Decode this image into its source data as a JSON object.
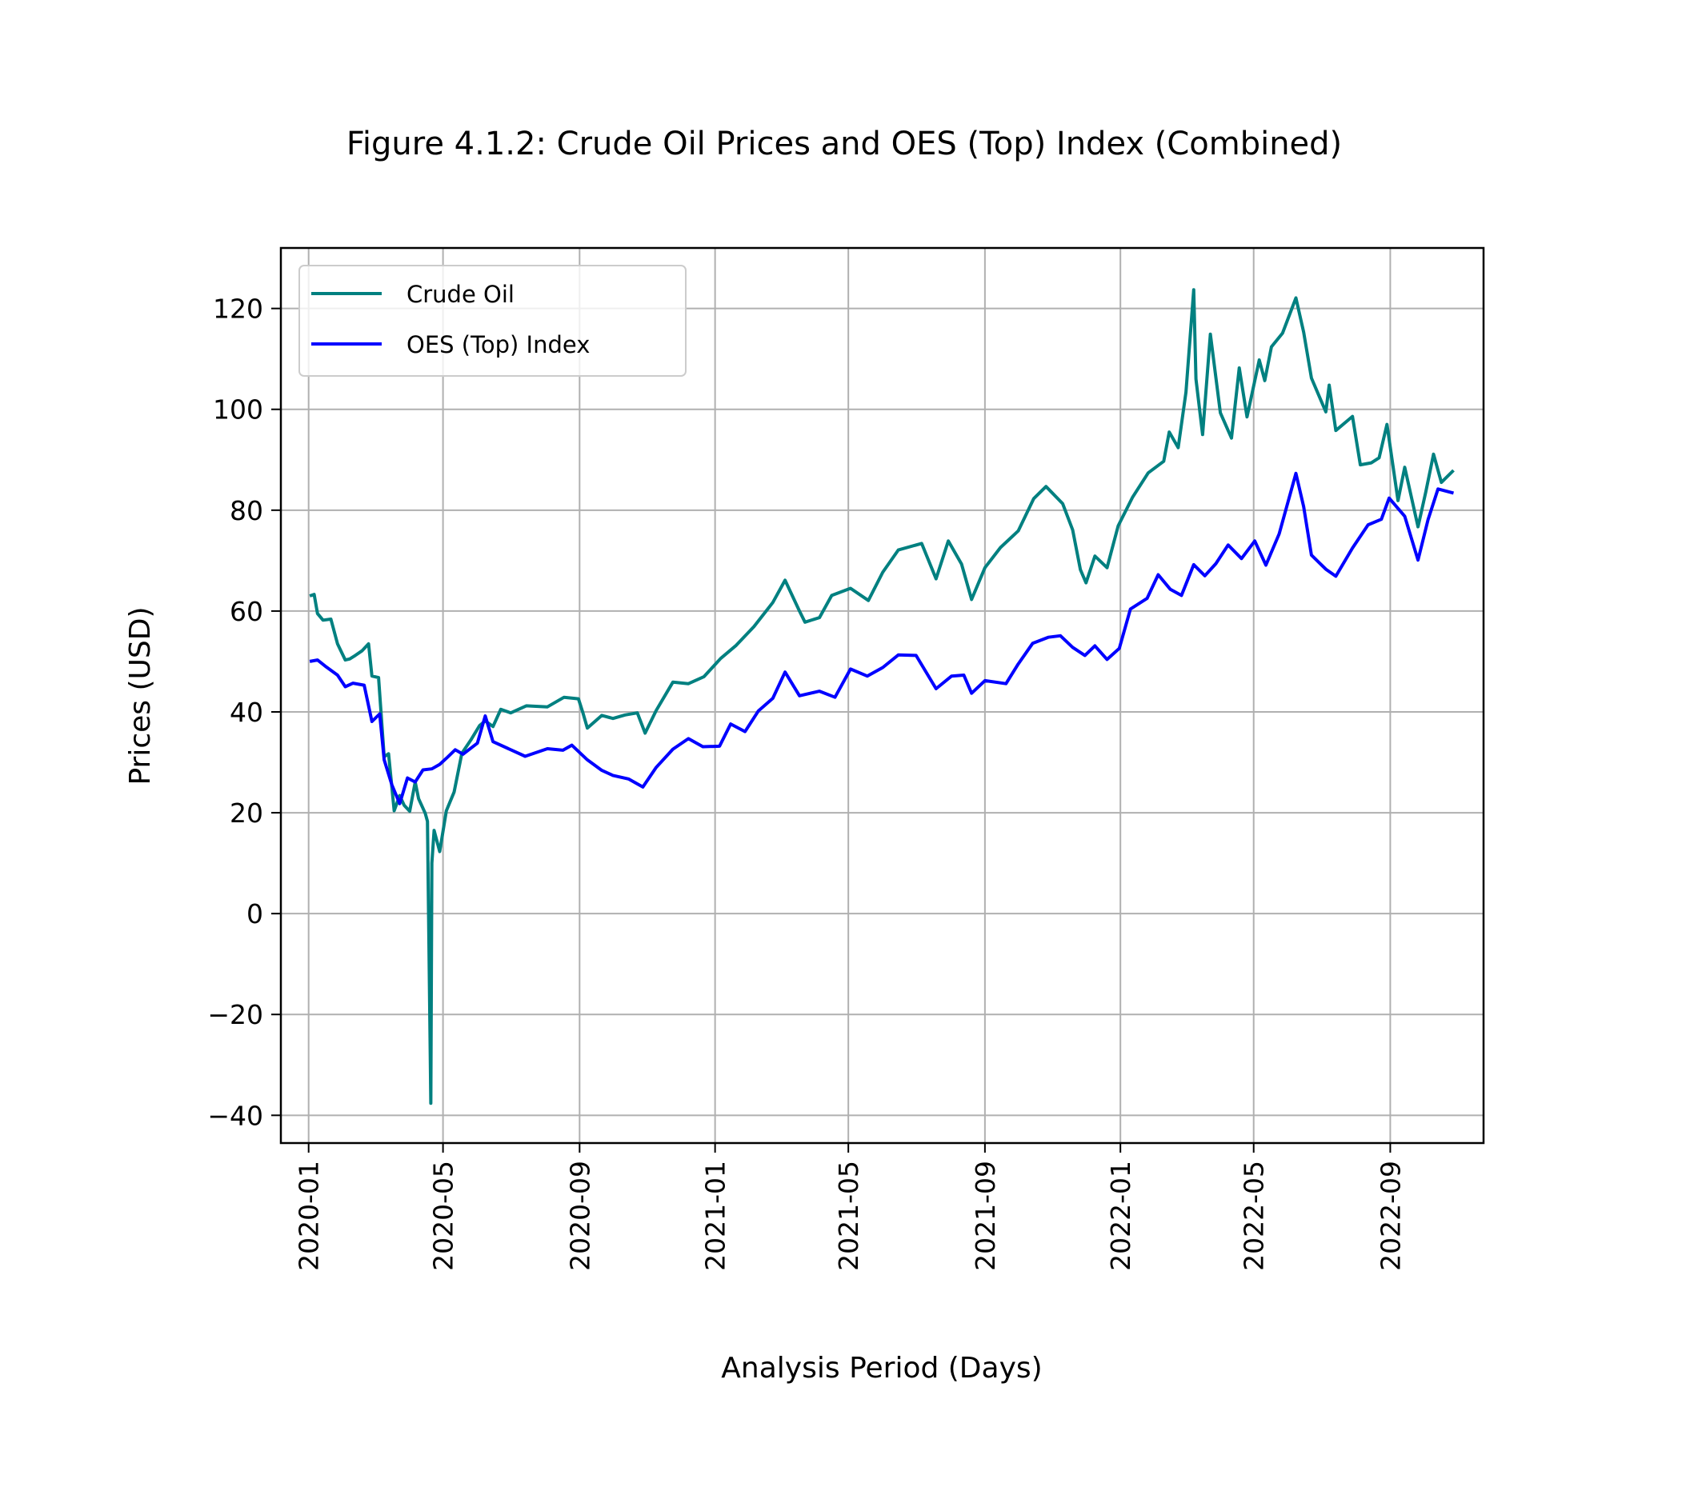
{
  "chart_data": {
    "type": "line",
    "title": "Figure 4.1.2: Crude Oil Prices and OES (Top) Index (Combined)",
    "xlabel": "Analysis Period (Days)",
    "ylabel": "Prices (USD)",
    "x_ticks": [
      "2020-01",
      "2020-05",
      "2020-09",
      "2021-01",
      "2021-05",
      "2021-09",
      "2022-01",
      "2022-05",
      "2022-09"
    ],
    "y_ticks": [
      "−40",
      "−20",
      "0",
      "20",
      "40",
      "60",
      "80",
      "100",
      "120"
    ],
    "xlim": [
      "2019-12-07",
      "2022-11-24"
    ],
    "ylim": [
      -45.5,
      132
    ],
    "grid": true,
    "legend_position": "top-left",
    "series": [
      {
        "name": "Crude Oil",
        "color": "#008080",
        "points": [
          [
            "2020-01-02",
            63
          ],
          [
            "2020-01-06",
            63.3
          ],
          [
            "2020-01-09",
            59.5
          ],
          [
            "2020-01-14",
            58.2
          ],
          [
            "2020-01-21",
            58.4
          ],
          [
            "2020-01-27",
            53.5
          ],
          [
            "2020-02-03",
            50.3
          ],
          [
            "2020-02-07",
            50.5
          ],
          [
            "2020-02-12",
            51.2
          ],
          [
            "2020-02-18",
            52.1
          ],
          [
            "2020-02-24",
            53.5
          ],
          [
            "2020-02-27",
            47.1
          ],
          [
            "2020-03-04",
            46.8
          ],
          [
            "2020-03-09",
            31.1
          ],
          [
            "2020-03-13",
            31.7
          ],
          [
            "2020-03-18",
            20.4
          ],
          [
            "2020-03-23",
            23.4
          ],
          [
            "2020-03-27",
            21.5
          ],
          [
            "2020-04-01",
            20.3
          ],
          [
            "2020-04-06",
            26.1
          ],
          [
            "2020-04-09",
            22.8
          ],
          [
            "2020-04-15",
            19.9
          ],
          [
            "2020-04-17",
            18.3
          ],
          [
            "2020-04-20",
            -37.6
          ],
          [
            "2020-04-21",
            10
          ],
          [
            "2020-04-23",
            16.5
          ],
          [
            "2020-04-28",
            12.3
          ],
          [
            "2020-05-04",
            20.4
          ],
          [
            "2020-05-11",
            24.1
          ],
          [
            "2020-05-18",
            31.8
          ],
          [
            "2020-05-26",
            34.4
          ],
          [
            "2020-06-03",
            37.3
          ],
          [
            "2020-06-08",
            38.2
          ],
          [
            "2020-06-15",
            37.1
          ],
          [
            "2020-06-22",
            40.5
          ],
          [
            "2020-07-01",
            39.8
          ],
          [
            "2020-07-15",
            41.2
          ],
          [
            "2020-08-03",
            41
          ],
          [
            "2020-08-18",
            42.9
          ],
          [
            "2020-08-31",
            42.6
          ],
          [
            "2020-09-04",
            39.8
          ],
          [
            "2020-09-08",
            36.8
          ],
          [
            "2020-09-21",
            39.3
          ],
          [
            "2020-10-01",
            38.7
          ],
          [
            "2020-10-12",
            39.4
          ],
          [
            "2020-10-23",
            39.8
          ],
          [
            "2020-10-30",
            35.8
          ],
          [
            "2020-11-09",
            40.3
          ],
          [
            "2020-11-24",
            45.9
          ],
          [
            "2020-12-08",
            45.6
          ],
          [
            "2020-12-22",
            47
          ],
          [
            "2021-01-06",
            50.6
          ],
          [
            "2021-01-20",
            53.2
          ],
          [
            "2021-02-05",
            56.9
          ],
          [
            "2021-02-22",
            61.7
          ],
          [
            "2021-03-05",
            66.1
          ],
          [
            "2021-03-18",
            60
          ],
          [
            "2021-03-23",
            57.8
          ],
          [
            "2021-04-05",
            58.7
          ],
          [
            "2021-04-16",
            63.1
          ],
          [
            "2021-05-03",
            64.5
          ],
          [
            "2021-05-19",
            62.1
          ],
          [
            "2021-06-01",
            67.7
          ],
          [
            "2021-06-15",
            72.1
          ],
          [
            "2021-07-06",
            73.4
          ],
          [
            "2021-07-19",
            66.4
          ],
          [
            "2021-07-30",
            73.9
          ],
          [
            "2021-08-11",
            69.3
          ],
          [
            "2021-08-20",
            62.3
          ],
          [
            "2021-09-01",
            68.6
          ],
          [
            "2021-09-15",
            72.6
          ],
          [
            "2021-10-01",
            75.9
          ],
          [
            "2021-10-15",
            82.3
          ],
          [
            "2021-10-26",
            84.7
          ],
          [
            "2021-11-10",
            81.3
          ],
          [
            "2021-11-19",
            76.1
          ],
          [
            "2021-11-26",
            68.2
          ],
          [
            "2021-12-01",
            65.6
          ],
          [
            "2021-12-09",
            70.9
          ],
          [
            "2021-12-20",
            68.6
          ],
          [
            "2021-12-30",
            76.9
          ],
          [
            "2022-01-12",
            82.6
          ],
          [
            "2022-01-26",
            87.4
          ],
          [
            "2022-02-09",
            89.7
          ],
          [
            "2022-02-14",
            95.5
          ],
          [
            "2022-02-22",
            92.4
          ],
          [
            "2022-03-01",
            103.4
          ],
          [
            "2022-03-08",
            123.7
          ],
          [
            "2022-03-10",
            106
          ],
          [
            "2022-03-16",
            95
          ],
          [
            "2022-03-23",
            114.9
          ],
          [
            "2022-04-01",
            99.3
          ],
          [
            "2022-04-11",
            94.3
          ],
          [
            "2022-04-18",
            108.2
          ],
          [
            "2022-04-25",
            98.5
          ],
          [
            "2022-05-06",
            109.8
          ],
          [
            "2022-05-11",
            105.7
          ],
          [
            "2022-05-17",
            112.4
          ],
          [
            "2022-05-27",
            115.1
          ],
          [
            "2022-06-08",
            122.1
          ],
          [
            "2022-06-15",
            115.3
          ],
          [
            "2022-06-22",
            106.2
          ],
          [
            "2022-07-05",
            99.5
          ],
          [
            "2022-07-08",
            104.8
          ],
          [
            "2022-07-14",
            95.8
          ],
          [
            "2022-07-29",
            98.6
          ],
          [
            "2022-08-05",
            89
          ],
          [
            "2022-08-15",
            89.4
          ],
          [
            "2022-08-22",
            90.4
          ],
          [
            "2022-08-29",
            97
          ],
          [
            "2022-09-08",
            81.9
          ],
          [
            "2022-09-14",
            88.5
          ],
          [
            "2022-09-26",
            76.7
          ],
          [
            "2022-10-03",
            83.6
          ],
          [
            "2022-10-10",
            91.1
          ],
          [
            "2022-10-17",
            85.5
          ],
          [
            "2022-10-28",
            87.9
          ]
        ]
      },
      {
        "name": "OES (Top) Index",
        "color": "#0000ff",
        "points": [
          [
            "2020-01-02",
            50
          ],
          [
            "2020-01-09",
            50.3
          ],
          [
            "2020-01-17",
            48.9
          ],
          [
            "2020-01-27",
            47.3
          ],
          [
            "2020-02-03",
            45
          ],
          [
            "2020-02-10",
            45.7
          ],
          [
            "2020-02-20",
            45.3
          ],
          [
            "2020-02-27",
            38.1
          ],
          [
            "2020-03-05",
            39.6
          ],
          [
            "2020-03-09",
            30.5
          ],
          [
            "2020-03-16",
            25.5
          ],
          [
            "2020-03-23",
            21.8
          ],
          [
            "2020-03-30",
            26.9
          ],
          [
            "2020-04-06",
            26.1
          ],
          [
            "2020-04-13",
            28.5
          ],
          [
            "2020-04-21",
            28.7
          ],
          [
            "2020-04-28",
            29.6
          ],
          [
            "2020-05-05",
            31
          ],
          [
            "2020-05-12",
            32.5
          ],
          [
            "2020-05-19",
            31.6
          ],
          [
            "2020-06-01",
            33.8
          ],
          [
            "2020-06-08",
            39.2
          ],
          [
            "2020-06-15",
            34.1
          ],
          [
            "2020-07-01",
            32.5
          ],
          [
            "2020-07-14",
            31.2
          ],
          [
            "2020-08-03",
            32.7
          ],
          [
            "2020-08-17",
            32.4
          ],
          [
            "2020-08-25",
            33.4
          ],
          [
            "2020-09-08",
            30.5
          ],
          [
            "2020-09-21",
            28.4
          ],
          [
            "2020-10-01",
            27.4
          ],
          [
            "2020-10-15",
            26.7
          ],
          [
            "2020-10-28",
            25.1
          ],
          [
            "2020-11-09",
            29
          ],
          [
            "2020-11-24",
            32.6
          ],
          [
            "2020-12-08",
            34.7
          ],
          [
            "2020-12-21",
            33.1
          ],
          [
            "2021-01-05",
            33.2
          ],
          [
            "2021-01-15",
            37.6
          ],
          [
            "2021-01-28",
            36.1
          ],
          [
            "2021-02-09",
            40.2
          ],
          [
            "2021-02-22",
            42.7
          ],
          [
            "2021-03-05",
            47.9
          ],
          [
            "2021-03-18",
            43.2
          ],
          [
            "2021-04-05",
            44.1
          ],
          [
            "2021-04-19",
            42.9
          ],
          [
            "2021-05-03",
            48.5
          ],
          [
            "2021-05-18",
            47.1
          ],
          [
            "2021-06-01",
            48.8
          ],
          [
            "2021-06-15",
            51.3
          ],
          [
            "2021-07-01",
            51.2
          ],
          [
            "2021-07-19",
            44.6
          ],
          [
            "2021-08-02",
            47.1
          ],
          [
            "2021-08-13",
            47.3
          ],
          [
            "2021-08-20",
            43.7
          ],
          [
            "2021-09-01",
            46.2
          ],
          [
            "2021-09-20",
            45.6
          ],
          [
            "2021-10-01",
            49.5
          ],
          [
            "2021-10-14",
            53.6
          ],
          [
            "2021-10-28",
            54.8
          ],
          [
            "2021-11-08",
            55.1
          ],
          [
            "2021-11-19",
            52.8
          ],
          [
            "2021-11-30",
            51.2
          ],
          [
            "2021-12-09",
            53.1
          ],
          [
            "2021-12-20",
            50.4
          ],
          [
            "2021-12-31",
            52.6
          ],
          [
            "2022-01-10",
            60.4
          ],
          [
            "2022-01-25",
            62.5
          ],
          [
            "2022-02-04",
            67.2
          ],
          [
            "2022-02-15",
            64.3
          ],
          [
            "2022-02-25",
            63.1
          ],
          [
            "2022-03-08",
            69.2
          ],
          [
            "2022-03-18",
            67
          ],
          [
            "2022-03-28",
            69.4
          ],
          [
            "2022-04-08",
            73.1
          ],
          [
            "2022-04-20",
            70.4
          ],
          [
            "2022-05-02",
            73.9
          ],
          [
            "2022-05-12",
            69.1
          ],
          [
            "2022-05-24",
            75.3
          ],
          [
            "2022-06-08",
            87.3
          ],
          [
            "2022-06-15",
            80.7
          ],
          [
            "2022-06-22",
            71.1
          ],
          [
            "2022-07-05",
            68.3
          ],
          [
            "2022-07-14",
            66.9
          ],
          [
            "2022-07-29",
            72.5
          ],
          [
            "2022-08-12",
            77.1
          ],
          [
            "2022-08-24",
            78.2
          ],
          [
            "2022-08-31",
            82.4
          ],
          [
            "2022-09-14",
            78.8
          ],
          [
            "2022-09-26",
            70.1
          ],
          [
            "2022-10-05",
            78.1
          ],
          [
            "2022-10-14",
            84.2
          ],
          [
            "2022-10-28",
            83.4
          ]
        ]
      }
    ]
  }
}
